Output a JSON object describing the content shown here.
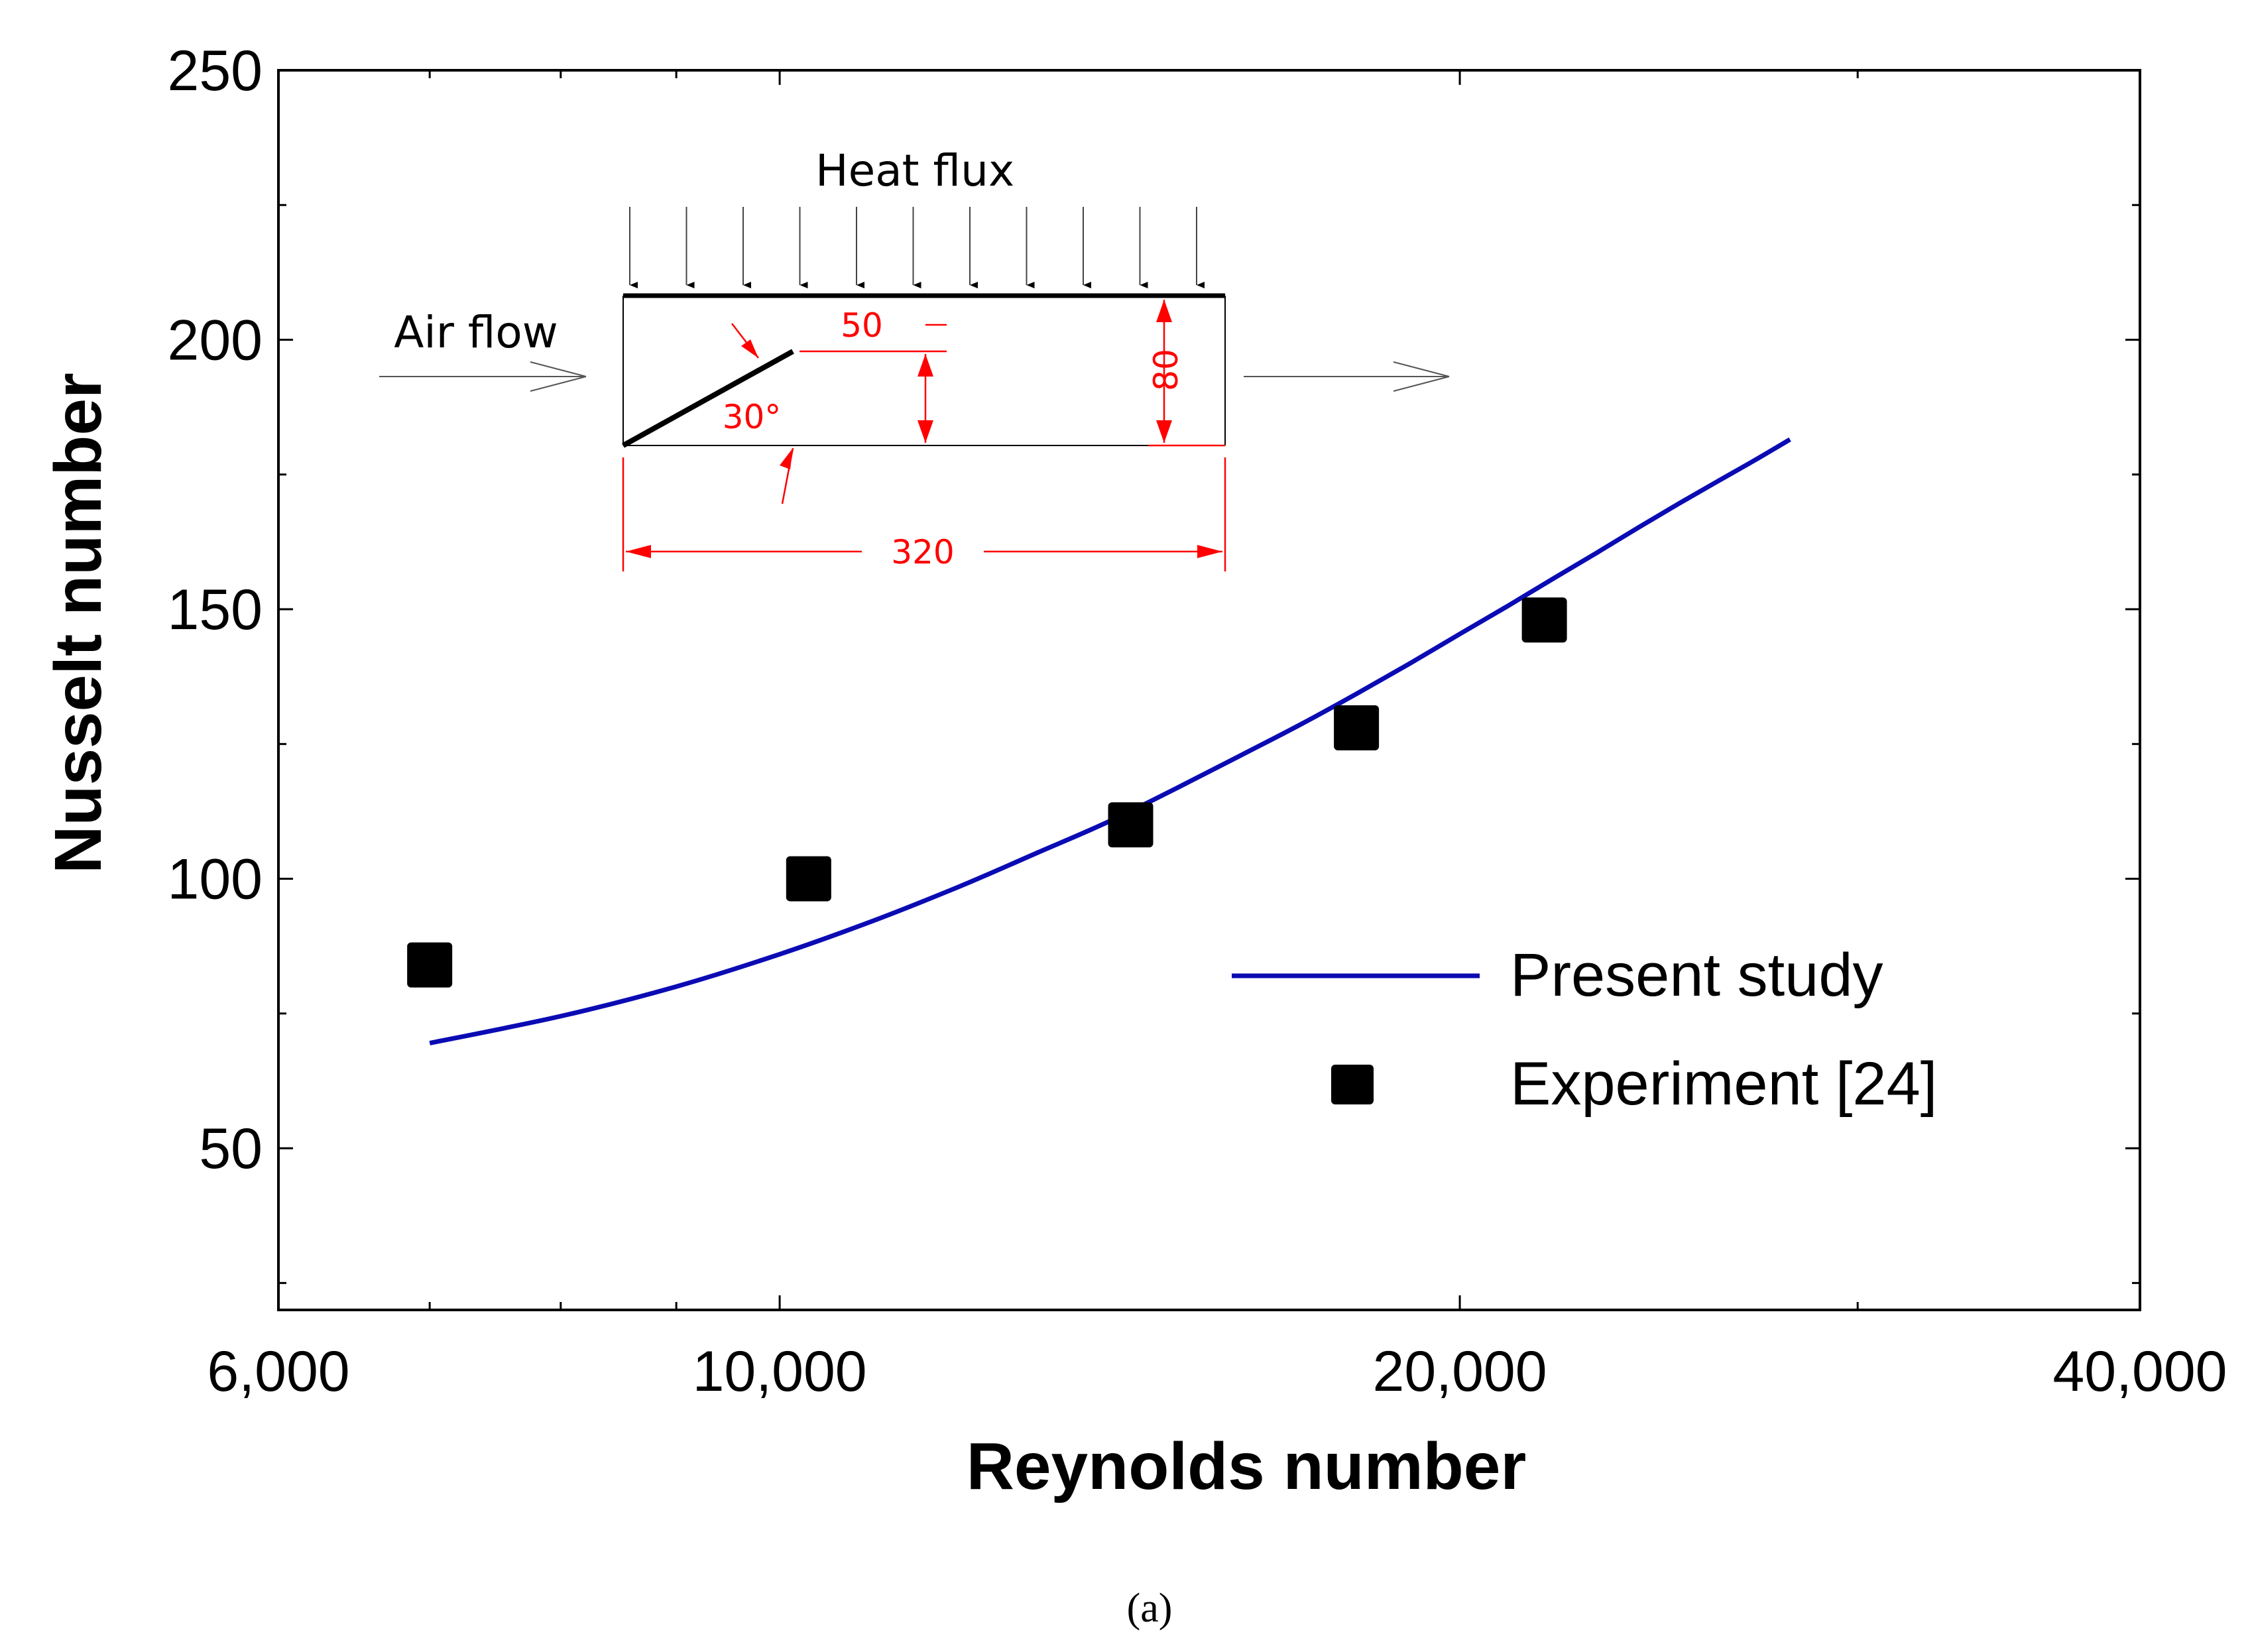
{
  "chart_data": {
    "type": "line+scatter",
    "xlabel": "Reynolds number",
    "ylabel": "Nusselt number",
    "x_scale": "log",
    "xlim": [
      6000,
      40000
    ],
    "ylim": [
      20,
      250
    ],
    "x_ticks": [
      6000,
      10000,
      20000,
      40000
    ],
    "x_tick_labels": [
      "6,000",
      "10,000",
      "20,000",
      "40,000"
    ],
    "x_minor_ticks": [
      7000,
      8000,
      9000,
      30000
    ],
    "y_ticks": [
      50,
      100,
      150,
      200,
      250
    ],
    "y_tick_labels": [
      "50",
      "100",
      "150",
      "200",
      "250"
    ],
    "series": [
      {
        "name": "Present study",
        "kind": "line",
        "x": [
          7000,
          8000,
          9000,
          10000,
          11000,
          12000,
          13000,
          14000,
          15000,
          16000,
          17000,
          18000,
          19000,
          20000,
          21000,
          22000,
          23000,
          24000,
          25000,
          26000,
          27000,
          28000
        ],
        "values": [
          69.5,
          74.5,
          80.0,
          86.0,
          92.2,
          98.5,
          104.8,
          110.7,
          116.9,
          122.9,
          128.6,
          134.3,
          139.9,
          145.4,
          150.6,
          155.7,
          160.5,
          165.2,
          169.6,
          173.7,
          177.6,
          181.5
        ]
      },
      {
        "name": "Experiment [24]",
        "kind": "scatter",
        "x": [
          7000,
          10300,
          14300,
          18000,
          21800
        ],
        "values": [
          84,
          100,
          110,
          128,
          148
        ]
      }
    ],
    "legend": {
      "position": "bottom-right"
    },
    "colors": {
      "line": "#0b0bb4",
      "marker": "#000000",
      "dimension": "#ff0000"
    },
    "inset": {
      "heat_flux_label": "Heat flux",
      "air_flow_label": "Air flow",
      "angle_label": "30°",
      "dim_50": "50",
      "dim_80": "80",
      "dim_320": "320"
    }
  },
  "caption": "(a)"
}
